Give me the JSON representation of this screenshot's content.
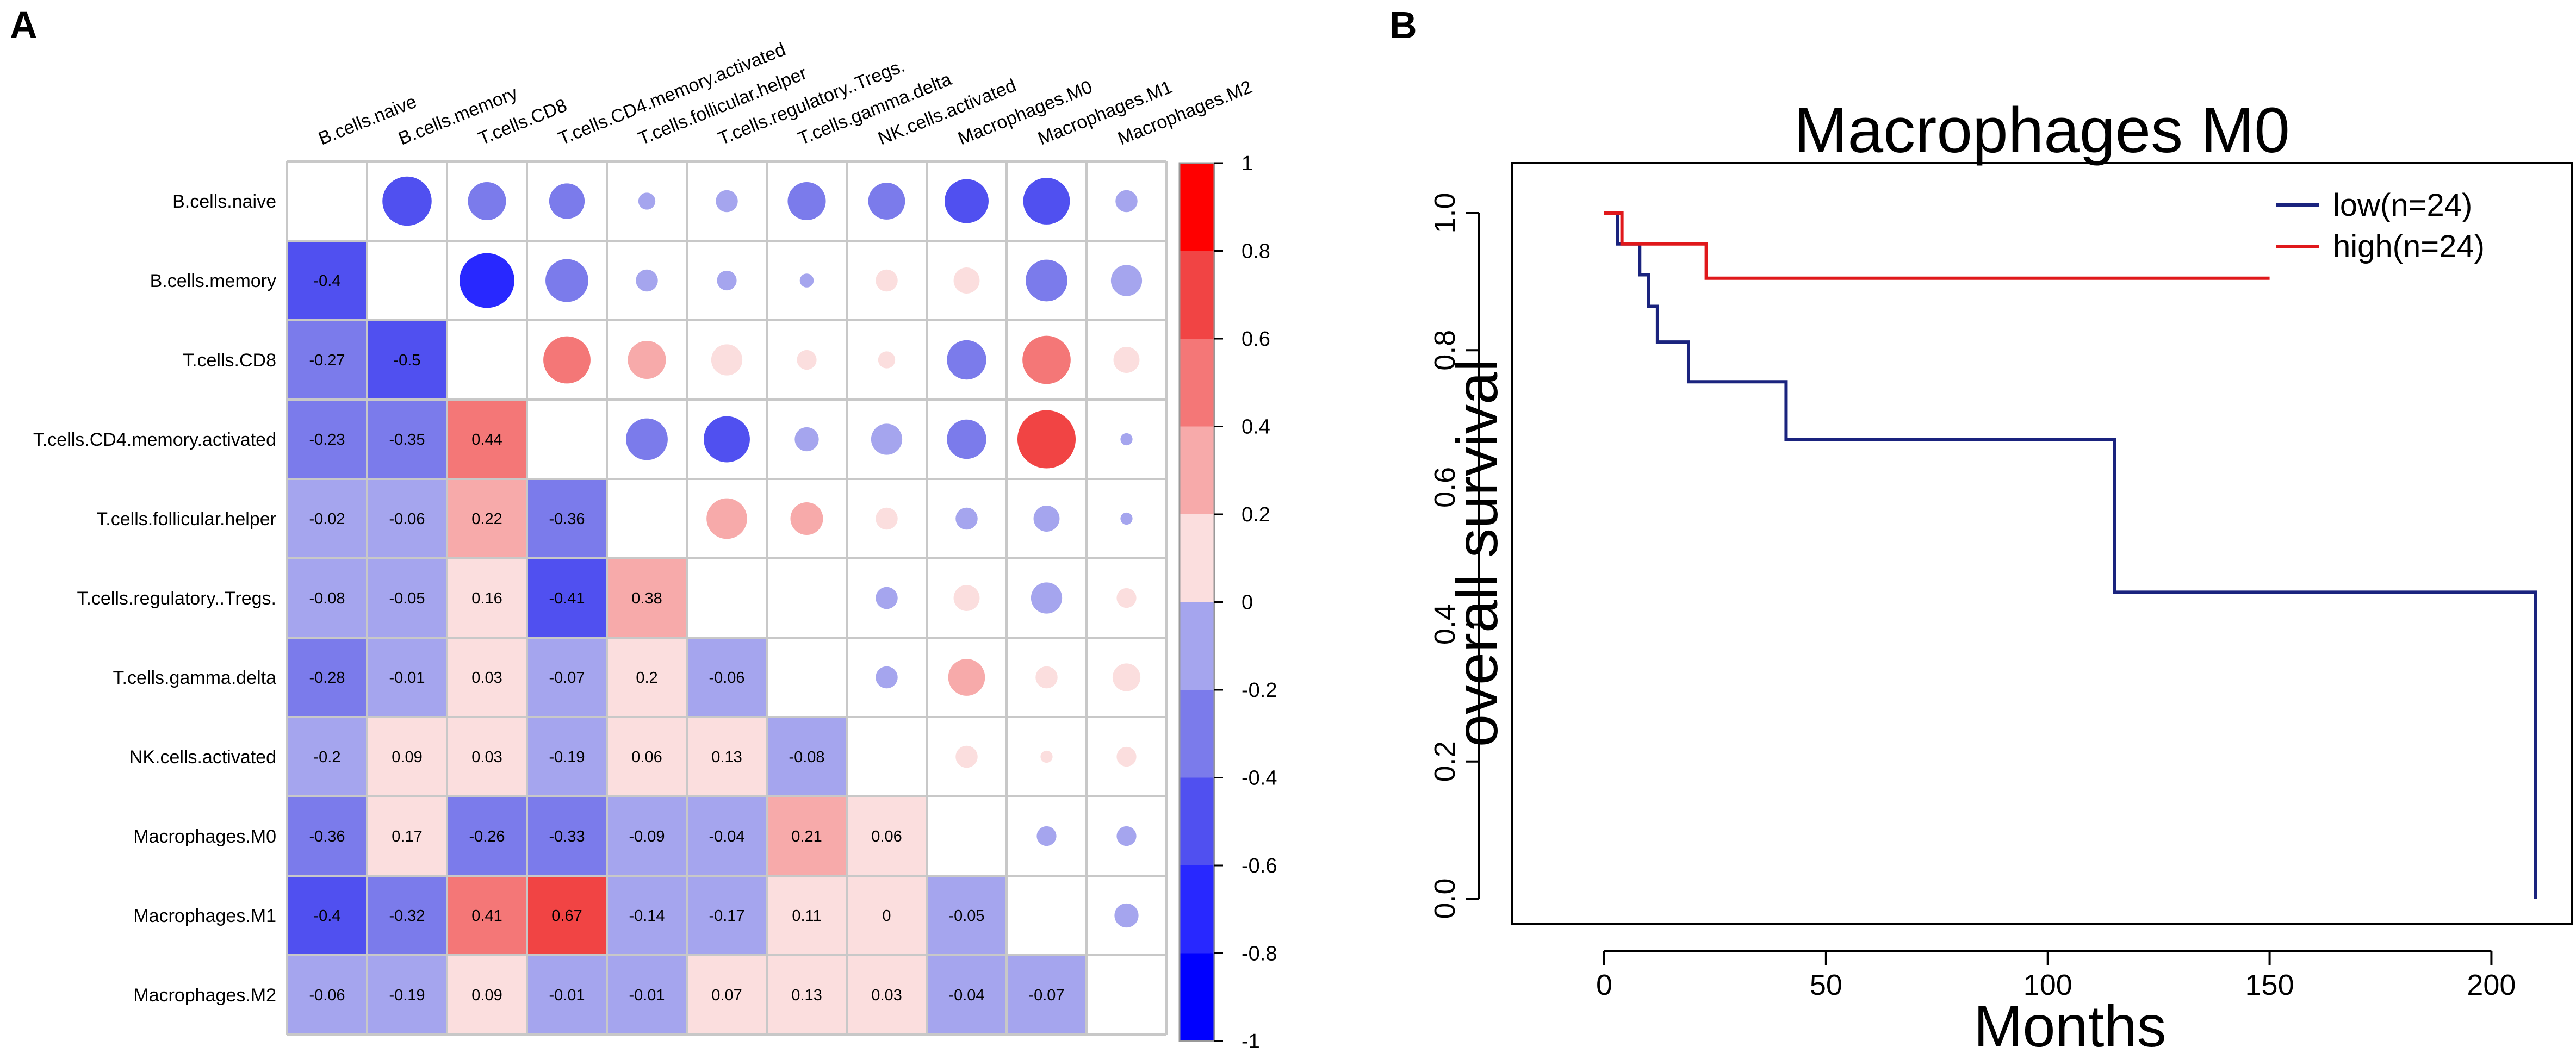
{
  "panel_labels": {
    "a": "A",
    "b": "B"
  },
  "chart_data": [
    {
      "type": "heatmap",
      "title": "",
      "labels": [
        "B.cells.naive",
        "B.cells.memory",
        "T.cells.CD8",
        "T.cells.CD4.memory.activated",
        "T.cells.follicular.helper",
        "T.cells.regulatory..Tregs.",
        "T.cells.gamma.delta",
        "NK.cells.activated",
        "Macrophages.M0",
        "Macrophages.M1",
        "Macrophages.M2"
      ],
      "lower_triangle": [
        [],
        [
          -0.4
        ],
        [
          -0.27,
          -0.5
        ],
        [
          -0.23,
          -0.35,
          0.44
        ],
        [
          -0.02,
          -0.06,
          0.22,
          -0.36
        ],
        [
          -0.08,
          -0.05,
          0.16,
          -0.41,
          0.38
        ],
        [
          -0.28,
          -0.01,
          0.03,
          -0.07,
          0.2,
          -0.06
        ],
        [
          -0.2,
          0.09,
          0.03,
          -0.19,
          0.06,
          0.13,
          -0.08
        ],
        [
          -0.36,
          0.17,
          -0.26,
          -0.33,
          -0.09,
          -0.04,
          0.21,
          0.06
        ],
        [
          -0.4,
          -0.32,
          0.41,
          0.67,
          -0.14,
          -0.17,
          0.11,
          0,
          -0.05
        ],
        [
          -0.06,
          -0.19,
          0.09,
          -0.01,
          -0.01,
          0.07,
          0.13,
          0.03,
          -0.04,
          -0.07
        ]
      ],
      "upper_triangle_estimated": [
        [
          null,
          -0.5,
          -0.3,
          -0.26,
          -0.06,
          -0.1,
          -0.3,
          -0.28,
          -0.4,
          -0.45,
          -0.1
        ],
        [
          null,
          null,
          -0.62,
          -0.38,
          -0.1,
          -0.08,
          -0.04,
          0.1,
          0.14,
          -0.36,
          -0.2
        ],
        [
          null,
          null,
          null,
          0.46,
          0.3,
          0.2,
          0.08,
          0.06,
          -0.32,
          0.48,
          0.14
        ],
        [
          null,
          null,
          null,
          null,
          -0.36,
          -0.44,
          -0.12,
          -0.2,
          -0.32,
          0.7,
          -0.03
        ],
        [
          null,
          null,
          null,
          null,
          null,
          0.34,
          0.22,
          0.1,
          -0.1,
          -0.14,
          -0.03
        ],
        [
          null,
          null,
          null,
          null,
          null,
          null,
          null,
          -0.1,
          0.14,
          -0.2,
          0.08
        ],
        [
          null,
          null,
          null,
          null,
          null,
          null,
          null,
          -0.1,
          0.28,
          0.1,
          0.16
        ],
        [
          null,
          null,
          null,
          null,
          null,
          null,
          null,
          null,
          0.1,
          0.03,
          0.08
        ],
        [
          null,
          null,
          null,
          null,
          null,
          null,
          null,
          null,
          null,
          -0.08,
          -0.08
        ],
        [
          null,
          null,
          null,
          null,
          null,
          null,
          null,
          null,
          null,
          null,
          -0.12
        ],
        [
          null,
          null,
          null,
          null,
          null,
          null,
          null,
          null,
          null,
          null,
          null
        ]
      ],
      "colorbar": {
        "min": -1,
        "max": 1,
        "ticks": [
          "1",
          "0.8",
          "0.6",
          "0.4",
          "0.2",
          "0",
          "-0.2",
          "-0.4",
          "-0.6",
          "-0.8",
          "-1"
        ]
      },
      "colors": {
        "neg_strong": "#1515e6",
        "pos_strong": "#f51818",
        "grid": "#c8c8c8",
        "border": "#999999",
        "bins": [
          "#0000ff",
          "#2828ff",
          "#5050f0",
          "#7b7beb",
          "#a5a5ee",
          "#d9d9f4",
          "#fbdede",
          "#f7aaaa",
          "#f47777",
          "#f14444",
          "#ff0000"
        ]
      }
    },
    {
      "type": "line",
      "title": "Macrophages M0",
      "xlabel": "Months",
      "ylabel": "overall  survival",
      "xlim": [
        0,
        210
      ],
      "ylim": [
        0,
        1
      ],
      "xticks": [
        "0",
        "50",
        "100",
        "150",
        "200"
      ],
      "yticks": [
        "0.0",
        "0.2",
        "0.4",
        "0.6",
        "0.8",
        "1.0"
      ],
      "legend_position": "top-right",
      "series": [
        {
          "name": "low(n=24)",
          "color": "#1a237e",
          "steps": [
            [
              0,
              1.0
            ],
            [
              3,
              0.955
            ],
            [
              8,
              0.91
            ],
            [
              10,
              0.864
            ],
            [
              12,
              0.812
            ],
            [
              19,
              0.754
            ],
            [
              41,
              0.67
            ],
            [
              115,
              0.447
            ],
            [
              210,
              0.447
            ],
            [
              210,
              0.0
            ]
          ]
        },
        {
          "name": "high(n=24)",
          "color": "#e0181b",
          "steps": [
            [
              0,
              1.0
            ],
            [
              4,
              0.955
            ],
            [
              23,
              0.905
            ],
            [
              150,
              0.905
            ]
          ]
        }
      ]
    }
  ]
}
